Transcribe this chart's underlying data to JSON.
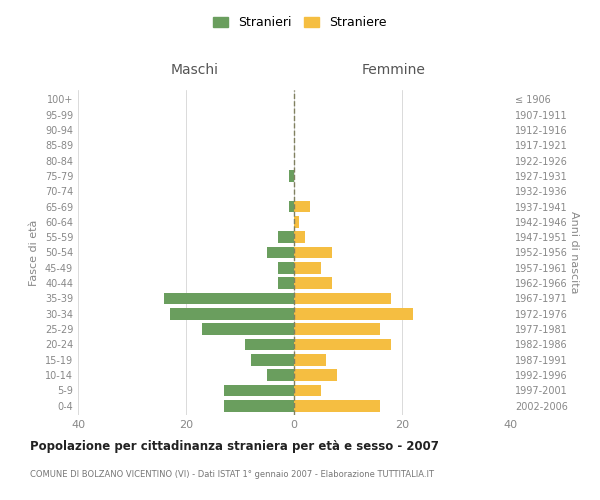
{
  "age_groups": [
    "100+",
    "95-99",
    "90-94",
    "85-89",
    "80-84",
    "75-79",
    "70-74",
    "65-69",
    "60-64",
    "55-59",
    "50-54",
    "45-49",
    "40-44",
    "35-39",
    "30-34",
    "25-29",
    "20-24",
    "15-19",
    "10-14",
    "5-9",
    "0-4"
  ],
  "birth_years": [
    "≤ 1906",
    "1907-1911",
    "1912-1916",
    "1917-1921",
    "1922-1926",
    "1927-1931",
    "1932-1936",
    "1937-1941",
    "1942-1946",
    "1947-1951",
    "1952-1956",
    "1957-1961",
    "1962-1966",
    "1967-1971",
    "1972-1976",
    "1977-1981",
    "1982-1986",
    "1987-1991",
    "1992-1996",
    "1997-2001",
    "2002-2006"
  ],
  "maschi": [
    0,
    0,
    0,
    0,
    0,
    1,
    0,
    1,
    0,
    3,
    5,
    3,
    3,
    24,
    23,
    17,
    9,
    8,
    5,
    13,
    13
  ],
  "femmine": [
    0,
    0,
    0,
    0,
    0,
    0,
    0,
    3,
    1,
    2,
    7,
    5,
    7,
    18,
    22,
    16,
    18,
    6,
    8,
    5,
    16
  ],
  "maschi_color": "#6a9e5e",
  "femmine_color": "#f5be41",
  "title": "Popolazione per cittadinanza straniera per età e sesso - 2007",
  "subtitle": "COMUNE DI BOLZANO VICENTINO (VI) - Dati ISTAT 1° gennaio 2007 - Elaborazione TUTTITALIA.IT",
  "left_label": "Maschi",
  "right_label": "Femmine",
  "ylabel_left": "Fasce di età",
  "ylabel_right": "Anni di nascita",
  "legend_maschi": "Stranieri",
  "legend_femmine": "Straniere",
  "xlim": 40,
  "background_color": "#ffffff",
  "grid_color": "#cccccc",
  "bar_height": 0.75
}
